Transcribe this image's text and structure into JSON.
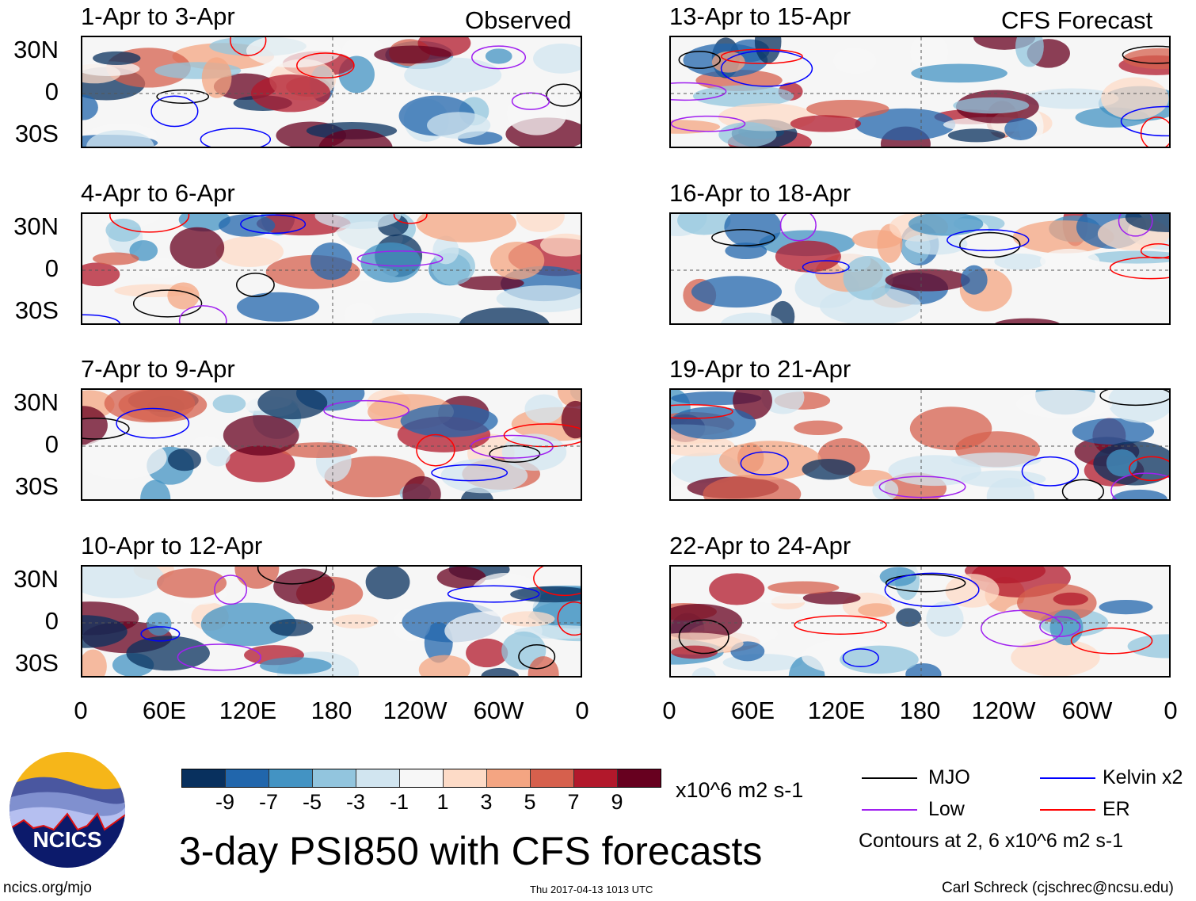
{
  "observed_label": "Observed",
  "forecast_label": "CFS Forecast",
  "panels": {
    "left": [
      "1-Apr to 3-Apr",
      "4-Apr to 6-Apr",
      "7-Apr to 9-Apr",
      "10-Apr to 12-Apr"
    ],
    "right": [
      "13-Apr to 15-Apr",
      "16-Apr to 18-Apr",
      "19-Apr to 21-Apr",
      "22-Apr to 24-Apr"
    ]
  },
  "lat_labels": [
    "30N",
    "0",
    "30S"
  ],
  "lon_labels": [
    "0",
    "60E",
    "120E",
    "180",
    "120W",
    "60W",
    "0"
  ],
  "colorbar": {
    "colors": [
      "#08305e",
      "#2166ac",
      "#4393c3",
      "#92c5de",
      "#d1e5f0",
      "#f7f7f7",
      "#fddbc7",
      "#f4a582",
      "#d6604d",
      "#b2182b",
      "#67001f"
    ],
    "labels": [
      "-9",
      "-7",
      "-5",
      "-3",
      "-1",
      "1",
      "3",
      "5",
      "7",
      "9"
    ],
    "units": "x10^6 m2 s-1"
  },
  "legend": {
    "items": [
      {
        "label": "MJO",
        "color": "#000000"
      },
      {
        "label": "Kelvin x2",
        "color": "#0000ff"
      },
      {
        "label": "Low",
        "color": "#a020f0"
      },
      {
        "label": "ER",
        "color": "#ff0000"
      }
    ],
    "note": "Contours at 2, 6 x10^6 m2 s-1"
  },
  "title": "3-day PSI850 with CFS forecasts",
  "logo_text": "NCICS",
  "url": "ncics.org/mjo",
  "timestamp": "Thu 2017-04-13 1013 UTC",
  "credit": "Carl Schreck (cjschrec@ncsu.edu)"
}
